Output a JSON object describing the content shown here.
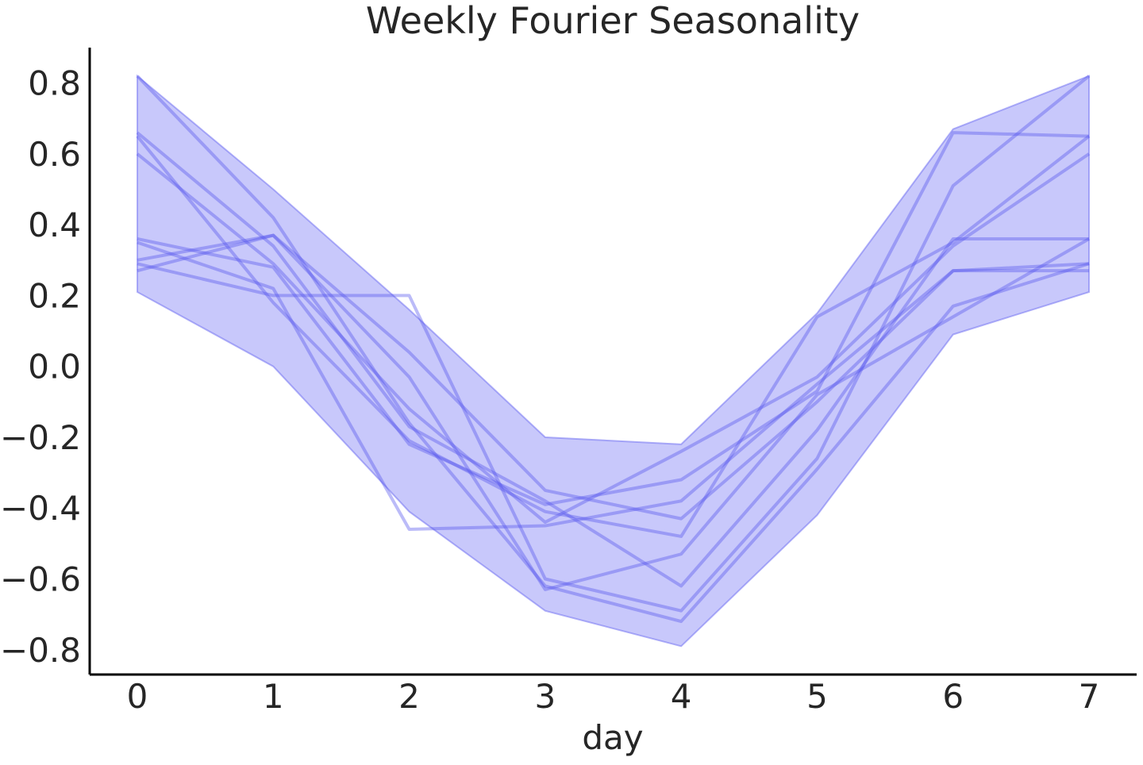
{
  "chart_data": {
    "type": "line",
    "title": "Weekly Fourier Seasonality",
    "xlabel": "day",
    "ylabel": "",
    "x": [
      0,
      1,
      2,
      3,
      4,
      5,
      6,
      7
    ],
    "xlim": [
      -0.35,
      7.35
    ],
    "ylim": [
      -0.87,
      0.9
    ],
    "x_ticks": [
      "0",
      "1",
      "2",
      "3",
      "4",
      "5",
      "6",
      "7"
    ],
    "y_ticks": [
      {
        "value": 0.8,
        "label": "0.8"
      },
      {
        "value": 0.6,
        "label": "0.6"
      },
      {
        "value": 0.4,
        "label": "0.4"
      },
      {
        "value": 0.2,
        "label": "0.2"
      },
      {
        "value": 0.0,
        "label": "0.0"
      },
      {
        "value": -0.2,
        "label": "−0.2"
      },
      {
        "value": -0.4,
        "label": "−0.4"
      },
      {
        "value": -0.6,
        "label": "−0.6"
      },
      {
        "value": -0.8,
        "label": "−0.8"
      }
    ],
    "band": {
      "upper": [
        0.82,
        0.5,
        0.16,
        -0.2,
        -0.22,
        0.15,
        0.67,
        0.82
      ],
      "lower": [
        0.21,
        0.0,
        -0.41,
        -0.69,
        -0.79,
        -0.42,
        0.09,
        0.21
      ]
    },
    "series": [
      {
        "values": [
          0.82,
          0.42,
          -0.16,
          -0.62,
          -0.72,
          -0.29,
          0.17,
          0.29
        ]
      },
      {
        "values": [
          0.66,
          0.34,
          -0.17,
          -0.38,
          -0.62,
          -0.18,
          0.36,
          0.36
        ]
      },
      {
        "values": [
          0.65,
          0.18,
          -0.21,
          -0.41,
          -0.48,
          0.14,
          0.35,
          0.65
        ]
      },
      {
        "values": [
          0.6,
          0.29,
          -0.12,
          -0.44,
          -0.24,
          -0.03,
          0.34,
          0.6
        ]
      },
      {
        "values": [
          0.36,
          0.28,
          -0.22,
          -0.39,
          -0.32,
          -0.07,
          0.66,
          0.65
        ]
      },
      {
        "values": [
          0.3,
          0.37,
          0.04,
          -0.35,
          -0.43,
          -0.1,
          0.27,
          0.29
        ]
      },
      {
        "values": [
          0.29,
          0.2,
          0.2,
          -0.6,
          -0.69,
          -0.26,
          0.51,
          0.82
        ]
      },
      {
        "values": [
          0.27,
          0.37,
          -0.03,
          -0.63,
          -0.53,
          -0.08,
          0.14,
          0.36
        ]
      },
      {
        "values": [
          0.35,
          0.22,
          -0.46,
          -0.45,
          -0.38,
          -0.05,
          0.27,
          0.27
        ]
      }
    ],
    "grid": false,
    "legend": "none",
    "colors": {
      "band_fill": "#6b6bf5",
      "band_edge": "#5c5cf0",
      "line": "#5555ee",
      "axis": "#000000",
      "text": "#262626"
    }
  }
}
